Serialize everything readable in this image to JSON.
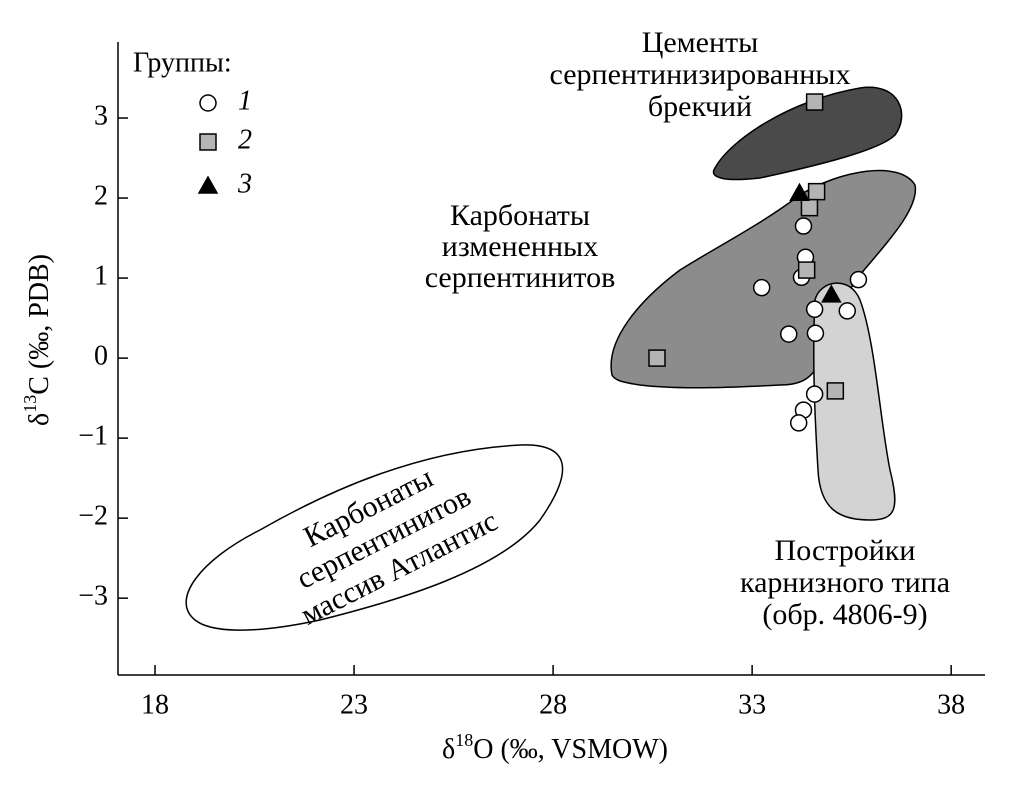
{
  "chart_data": {
    "type": "scatter",
    "x_label": [
      "δ",
      "18",
      "O (‰, VSMOW)"
    ],
    "y_label": [
      "δ",
      "13",
      "C (‰, PDB)"
    ],
    "legend_title": "Группы:",
    "legend": "upper left",
    "xlim": [
      17.07,
      38.85
    ],
    "xticks": [
      18,
      23,
      28,
      33,
      38
    ],
    "ylim": [
      -3.96,
      3.95
    ],
    "yticks": [
      {
        "value": -3,
        "label": "−3"
      },
      {
        "value": -2,
        "label": "−2"
      },
      {
        "value": -1,
        "label": "−1"
      },
      0,
      1,
      2,
      3
    ],
    "series": [
      {
        "name": "1",
        "marker": "circle",
        "color": "#ffffff",
        "x": [
          34.29,
          34.34,
          34.24,
          33.24,
          35.67,
          34.57,
          35.39,
          33.92,
          34.59,
          34.57,
          34.29,
          34.17
        ],
        "values": [
          1.65,
          1.26,
          1.01,
          0.88,
          0.98,
          0.61,
          0.59,
          0.3,
          0.31,
          -0.45,
          -0.65,
          -0.81
        ]
      },
      {
        "name": "2",
        "marker": "square",
        "color": "#b4b4b4",
        "x": [
          34.57,
          34.62,
          34.44,
          34.37,
          30.61,
          35.09
        ],
        "values": [
          3.2,
          2.08,
          1.88,
          1.1,
          0.0,
          -0.41
        ]
      },
      {
        "name": "3",
        "marker": "triangle",
        "color": "#000000",
        "x": [
          34.19,
          34.99
        ],
        "values": [
          2.06,
          0.79
        ]
      }
    ],
    "annotations": [
      [
        "Цементы",
        "серпентинизированных",
        "брекчий"
      ],
      [
        "Карбонаты",
        "измененных",
        "серпентинитов"
      ],
      [
        "Постройки",
        "карнизного типа",
        "(обр. 4806-9)"
      ],
      [
        "Карбонаты",
        "серпентинитов",
        "массив Атлантис"
      ]
    ]
  }
}
